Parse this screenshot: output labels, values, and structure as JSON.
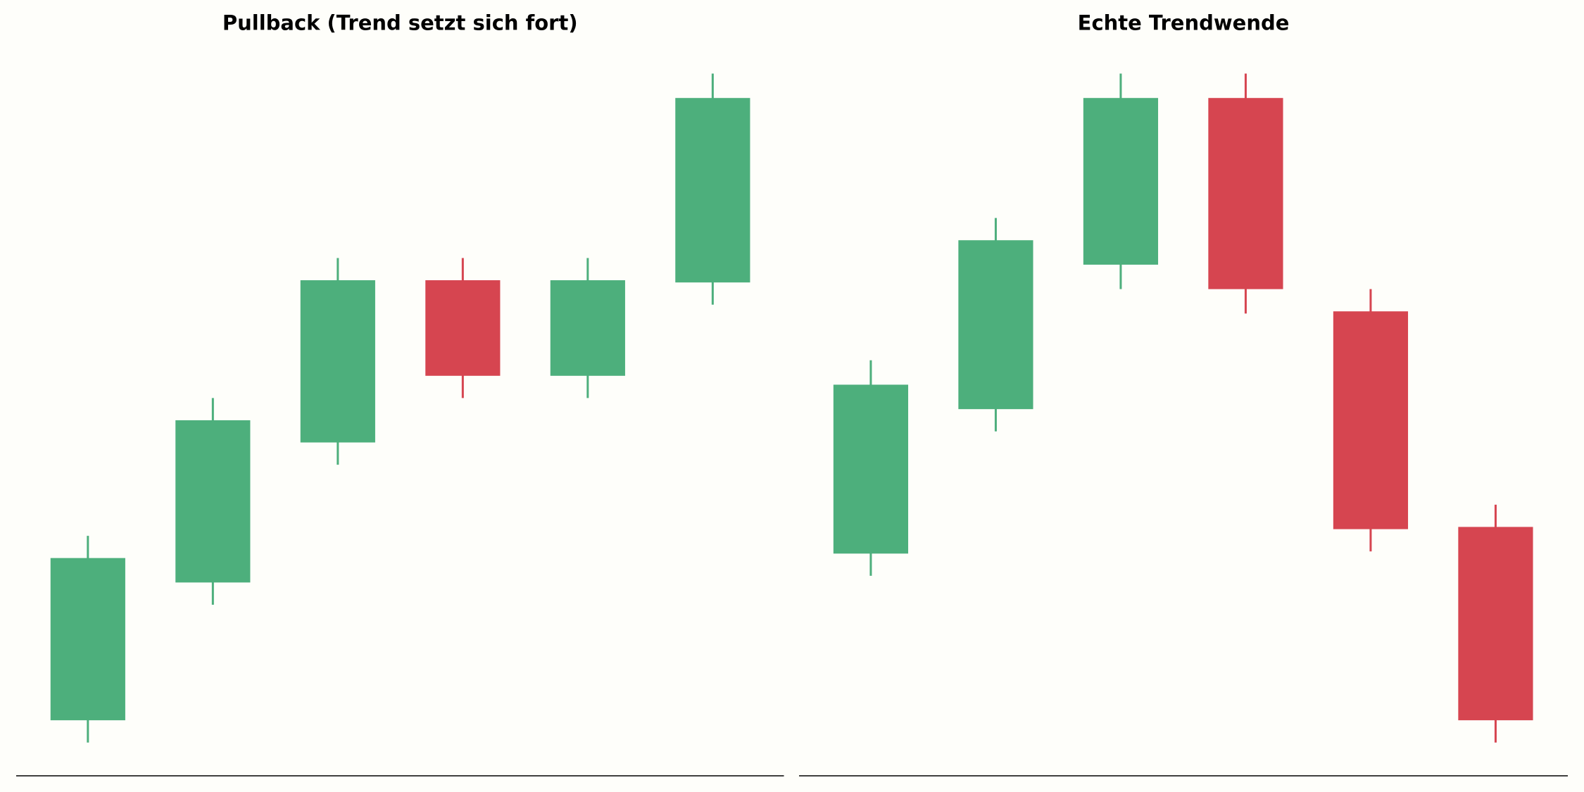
{
  "chart_data": [
    {
      "type": "candlestick",
      "title": "Pullback (Trend setzt sich fort)",
      "open": [
        2.5,
        8.7,
        15.0,
        22.3,
        18.0,
        22.2
      ],
      "high": [
        10.8,
        17.0,
        23.3,
        23.3,
        23.3,
        31.6
      ],
      "low": [
        1.5,
        7.7,
        14.0,
        17.0,
        17.0,
        21.2
      ],
      "close": [
        9.8,
        16.0,
        22.3,
        18.0,
        22.3,
        30.5
      ],
      "up_color": "#4daf7c",
      "down_color": "#d64550",
      "ylim": [
        0,
        32
      ]
    },
    {
      "type": "candlestick",
      "title": "Echte Trendwende",
      "open": [
        10.0,
        16.5,
        23.0,
        30.5,
        20.9,
        11.2
      ],
      "high": [
        18.7,
        25.1,
        31.6,
        31.6,
        21.9,
        12.2
      ],
      "low": [
        9.0,
        15.5,
        21.9,
        20.8,
        10.1,
        1.5
      ],
      "close": [
        17.6,
        24.1,
        30.5,
        21.9,
        11.1,
        2.5
      ],
      "up_color": "#4daf7c",
      "down_color": "#d64550",
      "ylim": [
        0,
        32
      ]
    }
  ]
}
